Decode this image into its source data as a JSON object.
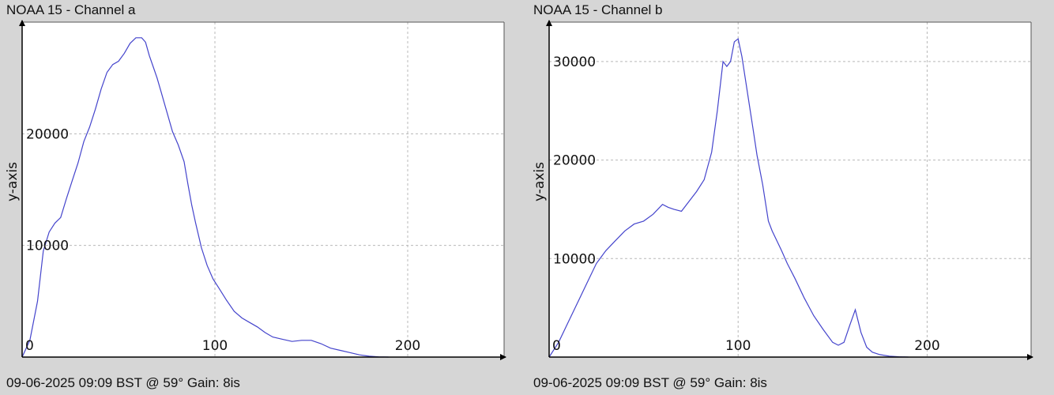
{
  "chart_data": [
    {
      "type": "line",
      "title": "NOAA 15 - Channel a",
      "footer": "09-06-2025 09:09 BST @ 59° Gain: 8is",
      "xlabel": "",
      "ylabel": "y-axis",
      "xlim": [
        0,
        250
      ],
      "ylim": [
        0,
        30000
      ],
      "x_ticks": [
        0,
        100,
        200
      ],
      "y_ticks": [
        10000,
        20000
      ],
      "x_tick_labels": [
        "0",
        "100",
        "200"
      ],
      "y_tick_labels": [
        "10000",
        "20000"
      ],
      "grid": true,
      "line_color": "#4444cc",
      "series": [
        {
          "x": [
            0,
            4,
            8,
            11,
            14,
            17,
            20,
            23,
            26,
            29,
            32,
            35,
            38,
            41,
            44,
            47,
            50,
            53,
            56,
            59,
            62,
            64,
            66,
            68,
            70,
            72,
            75,
            78,
            81,
            84,
            86,
            88,
            90,
            93,
            96,
            99,
            102,
            106,
            110,
            114,
            118,
            122,
            126,
            130,
            135,
            140,
            145,
            150,
            155,
            160,
            165,
            170,
            175,
            180,
            185,
            190
          ],
          "y": [
            0,
            1500,
            5000,
            9500,
            11200,
            12000,
            12500,
            14200,
            15800,
            17400,
            19300,
            20600,
            22200,
            24000,
            25500,
            26200,
            26500,
            27200,
            28100,
            28600,
            28600,
            28200,
            27000,
            26000,
            25000,
            23800,
            22000,
            20200,
            19000,
            17500,
            15500,
            13600,
            12000,
            9800,
            8200,
            7000,
            6200,
            5100,
            4100,
            3500,
            3100,
            2700,
            2200,
            1800,
            1600,
            1400,
            1500,
            1500,
            1200,
            800,
            600,
            400,
            200,
            80,
            20,
            0
          ]
        }
      ]
    },
    {
      "type": "line",
      "title": "NOAA 15 - Channel b",
      "footer": "09-06-2025 09:09 BST @ 59° Gain: 8is",
      "xlabel": "",
      "ylabel": "y-axis",
      "xlim": [
        0,
        255
      ],
      "ylim": [
        0,
        34000
      ],
      "x_ticks": [
        0,
        100,
        200
      ],
      "y_ticks": [
        10000,
        20000,
        30000
      ],
      "x_tick_labels": [
        "0",
        "100",
        "200"
      ],
      "y_tick_labels": [
        "10000",
        "20000",
        "30000"
      ],
      "grid": true,
      "line_color": "#4444cc",
      "series": [
        {
          "x": [
            0,
            5,
            10,
            15,
            20,
            25,
            30,
            35,
            40,
            45,
            50,
            55,
            60,
            63,
            66,
            70,
            74,
            78,
            82,
            86,
            89,
            92,
            94,
            96,
            98,
            100,
            102,
            104,
            106,
            108,
            110,
            113,
            116,
            118,
            120,
            123,
            126,
            130,
            135,
            140,
            145,
            150,
            153,
            156,
            159,
            162,
            165,
            168,
            171,
            175,
            180,
            185,
            190
          ],
          "y": [
            0,
            1500,
            3500,
            5500,
            7500,
            9500,
            10800,
            11800,
            12800,
            13500,
            13800,
            14500,
            15500,
            15200,
            15000,
            14800,
            15800,
            16800,
            18000,
            20800,
            25000,
            30000,
            29500,
            30000,
            32000,
            32300,
            30500,
            28000,
            25500,
            23000,
            20500,
            17500,
            13800,
            12800,
            12000,
            10800,
            9500,
            8000,
            6000,
            4200,
            2800,
            1500,
            1200,
            1500,
            3200,
            4800,
            2500,
            1000,
            500,
            250,
            100,
            30,
            0
          ]
        }
      ]
    }
  ]
}
